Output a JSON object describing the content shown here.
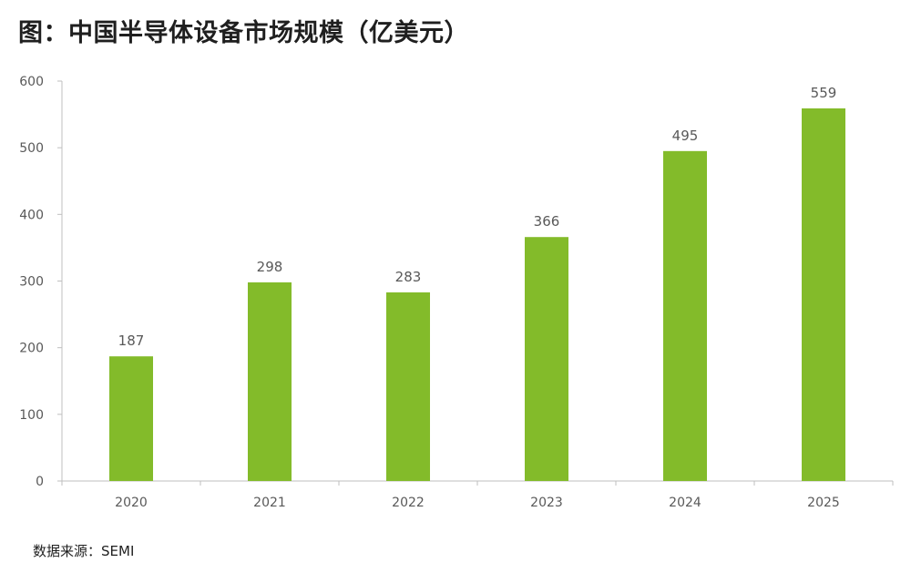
{
  "title": "图：中国半导体设备市场规模（亿美元）",
  "source": "数据来源：SEMI",
  "colors": {
    "bar": "#83bb2a",
    "axis": "#bfbfbf",
    "text": "#595959",
    "title": "#1f1f1f"
  },
  "chart_data": {
    "type": "bar",
    "title": "图：中国半导体设备市场规模（亿美元）",
    "categories": [
      "2020",
      "2021",
      "2022",
      "2023",
      "2024",
      "2025"
    ],
    "values": [
      187,
      298,
      283,
      366,
      495,
      559
    ],
    "data_labels": [
      "187",
      "298",
      "283",
      "366",
      "495",
      "559"
    ],
    "ylim": [
      0,
      600
    ],
    "yticks": [
      "0",
      "100",
      "200",
      "300",
      "400",
      "500",
      "600"
    ],
    "xlabel": "",
    "ylabel": "",
    "grid": false,
    "legend": "none"
  }
}
